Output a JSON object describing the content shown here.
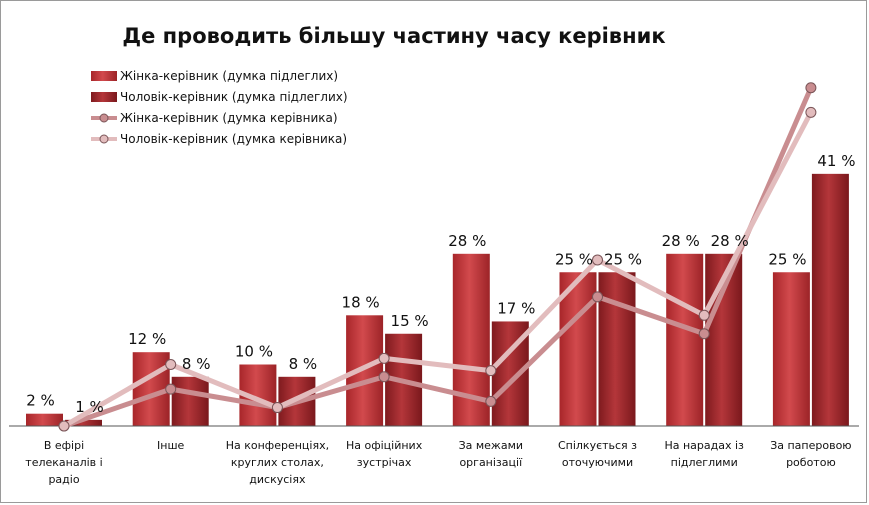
{
  "chart_data": {
    "type": "bar",
    "title": "Де проводить більшу частину часу керівник",
    "categories": [
      [
        "В ефірі",
        "телеканалів і",
        "радіо"
      ],
      [
        "Інше"
      ],
      [
        "На конференціях,",
        "круглих столах,",
        "дискусіях"
      ],
      [
        "На офіційних",
        "зустрічах"
      ],
      [
        "За межами",
        "організації"
      ],
      [
        "Спілкується з",
        "оточуючими"
      ],
      [
        "На нарадах із",
        "підлеглими"
      ],
      [
        "За паперовою",
        "роботою"
      ]
    ],
    "ylim": [
      0,
      60
    ],
    "grid": false,
    "legend_position": "top-left",
    "series": [
      {
        "name": "Жінка-керівник (думка підлеглих)",
        "kind": "bar",
        "color": "#c0393c",
        "values": [
          2,
          12,
          10,
          18,
          28,
          25,
          28,
          25
        ],
        "labels": [
          "2 %",
          "12 %",
          "10 %",
          "18 %",
          "28 %",
          "25 %",
          "28 %",
          "25 %"
        ]
      },
      {
        "name": "Чоловік-керівник (думка підлеглих)",
        "kind": "bar",
        "color": "#b02a2e",
        "values": [
          1,
          8,
          8,
          15,
          17,
          25,
          28,
          41
        ],
        "labels": [
          "1 %",
          "8 %",
          "8 %",
          "15 %",
          "17 %",
          "25 %",
          "28 %",
          "41 %"
        ]
      },
      {
        "name": "Жінка-керівник (думка керівника)",
        "kind": "line",
        "color": "#c98d90",
        "values": [
          0,
          6,
          3,
          8,
          4,
          21,
          15,
          55
        ]
      },
      {
        "name": "Чоловік-керівник (думка керівника)",
        "kind": "line",
        "color": "#e2bcbd",
        "values": [
          0,
          10,
          3,
          11,
          9,
          27,
          18,
          51
        ]
      }
    ]
  }
}
